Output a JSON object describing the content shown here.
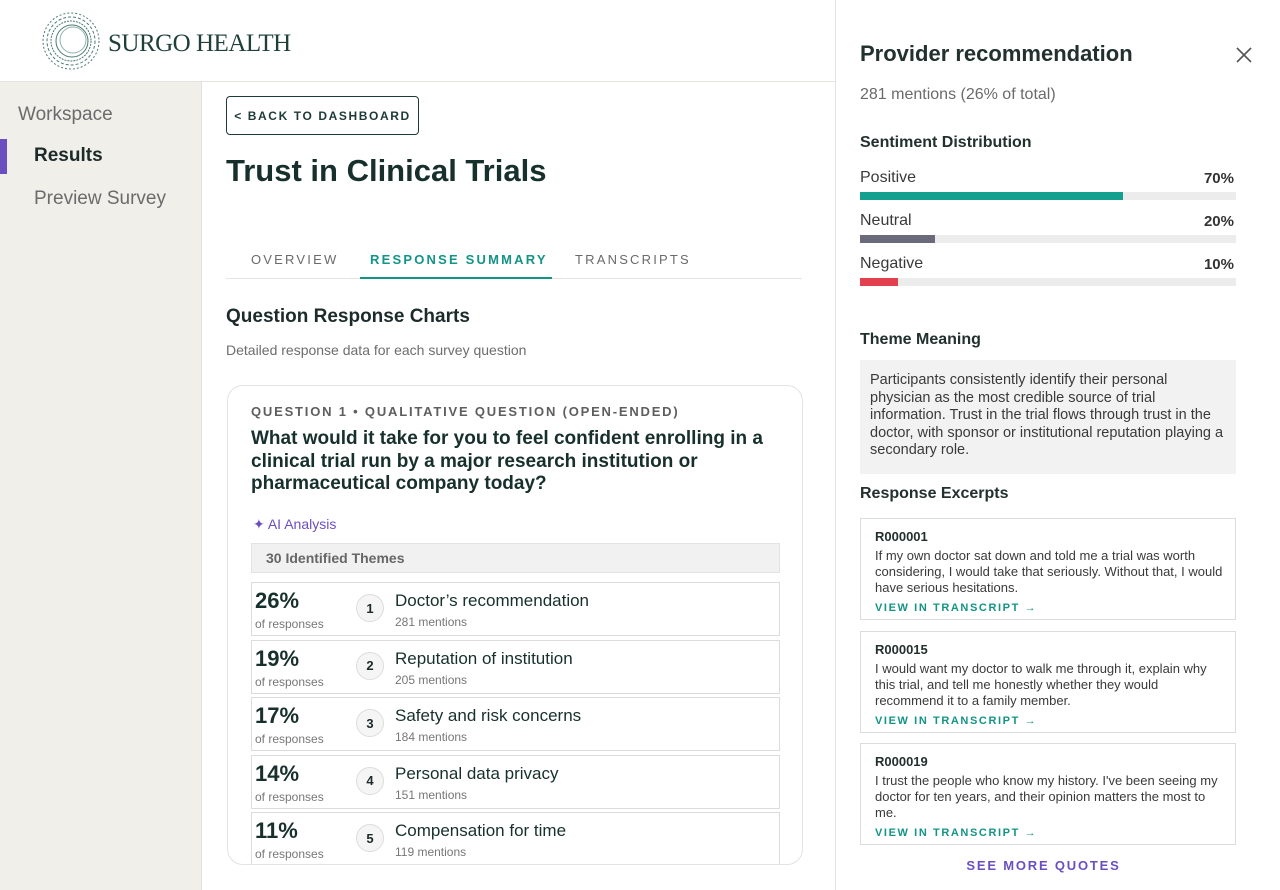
{
  "header": {
    "logo": "SURGO HEALTH"
  },
  "sidebar": {
    "items": [
      "Workspace",
      "Results",
      "Preview Survey"
    ]
  },
  "main": {
    "back": "< BACK TO DASHBOARD",
    "title": "Trust in Clinical Trials",
    "tabs": [
      "OVERVIEW",
      "RESPONSE SUMMARY",
      "TRANSCRIPTS"
    ],
    "section_title": "Question Response Charts",
    "section_subtitle": "Detailed response data for each survey question",
    "question": {
      "label": "QUESTION 1 • QUALITATIVE QUESTION (OPEN-ENDED)",
      "text": "What would it take for you to feel confident enrolling in a clinical trial run by a major research institution or pharmaceutical company today?",
      "ai_label": "✦ AI Analysis",
      "themes_header": "30 Identified Themes",
      "themes": [
        {
          "percent": "26%",
          "caption": "of responses",
          "rank": "1",
          "name": "Doctor’s recommendation",
          "mentions": "281 mentions"
        },
        {
          "percent": "19%",
          "caption": "of responses",
          "rank": "2",
          "name": "Reputation of institution",
          "mentions": "205 mentions"
        },
        {
          "percent": "17%",
          "caption": "of responses",
          "rank": "3",
          "name": "Safety and risk concerns",
          "mentions": "184 mentions"
        },
        {
          "percent": "14%",
          "caption": "of responses",
          "rank": "4",
          "name": "Personal data privacy",
          "mentions": "151 mentions"
        },
        {
          "percent": "11%",
          "caption": "of responses",
          "rank": "5",
          "name": "Compensation for time",
          "mentions": "119 mentions"
        }
      ]
    }
  },
  "panel": {
    "title": "Provider recommendation",
    "summary": "281 mentions (26% of total)",
    "sentiment_title": "Sentiment Distribution",
    "sentiment": [
      {
        "name": "Positive",
        "value": 70,
        "label": "70%",
        "color": "#14a08f"
      },
      {
        "name": "Neutral",
        "value": 20,
        "label": "20%",
        "color": "#6b6a7a"
      },
      {
        "name": "Negative",
        "value": 10,
        "label": "10%",
        "color": "#e2404c"
      }
    ],
    "meaning_title": "Theme Meaning",
    "meaning": "Participants consistently identify their personal physician as the most credible source of trial information. Trust in the trial flows through trust in the doctor, with sponsor or institutional reputation playing a secondary role.",
    "excerpts_title": "Response Excerpts",
    "excerpts": [
      {
        "id": "R000001",
        "text": "If my own doctor sat down and told me a trial was worth considering, I would take that seriously. Without that, I would have serious hesitations.",
        "link": "VIEW IN TRANSCRIPT →"
      },
      {
        "id": "R000015",
        "text": "I would want my doctor to walk me through it, explain why this trial, and tell me honestly whether they would recommend it to a family member.",
        "link": "VIEW IN TRANSCRIPT →"
      },
      {
        "id": "R000019",
        "text": "I trust the people who know my history. I've been seeing my doctor for ten years, and their opinion matters the most to me.",
        "link": "VIEW IN TRANSCRIPT →"
      }
    ],
    "see_more": "SEE MORE QUOTES"
  }
}
